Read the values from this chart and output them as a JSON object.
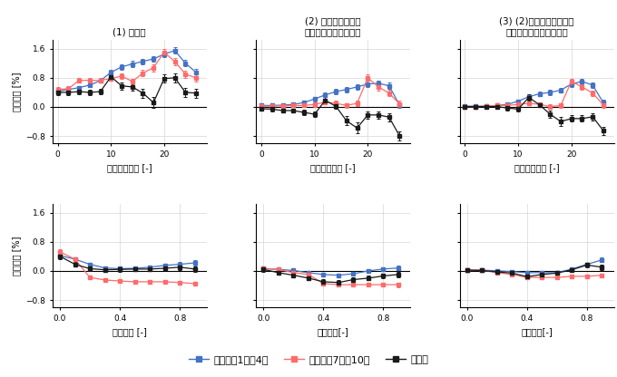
{
  "titles": [
    "(1) 補正前",
    "(2) 巻雲シグナルと\n大気の量を用いて補正",
    "(3) (2)に加えて上下濃度\n比の推定値も用いて補正"
  ],
  "xlabel_top": "巻雲シグナル [-]",
  "xlabel_bottom_1": "雲被覆率 [-]",
  "xlabel_bottom_23": "雲被覆率[-]",
  "ylabel": "推定誤差 [%]",
  "legend_labels": [
    "北半球の1月～4月",
    "北半球の7月～10月",
    "南半球"
  ],
  "blue_color": "#4472C4",
  "red_color": "#FF6B6B",
  "black_color": "#1a1a1a",
  "cirrus_x": [
    0,
    2,
    4,
    6,
    8,
    10,
    12,
    14,
    16,
    18,
    20,
    22,
    24,
    26
  ],
  "top_blue_1": [
    0.43,
    0.48,
    0.53,
    0.6,
    0.72,
    0.95,
    1.1,
    1.18,
    1.25,
    1.32,
    1.45,
    1.55,
    1.2,
    0.95
  ],
  "top_red_1": [
    0.48,
    0.5,
    0.73,
    0.73,
    0.73,
    0.78,
    0.85,
    0.7,
    0.93,
    1.08,
    1.5,
    1.25,
    0.9,
    0.8
  ],
  "top_black_1": [
    0.4,
    0.4,
    0.42,
    0.4,
    0.42,
    0.83,
    0.58,
    0.55,
    0.38,
    0.12,
    0.78,
    0.8,
    0.4,
    0.38
  ],
  "top_blue_1_eb": [
    0.06,
    0.05,
    0.05,
    0.06,
    0.06,
    0.07,
    0.07,
    0.08,
    0.08,
    0.08,
    0.09,
    0.09,
    0.09,
    0.1
  ],
  "top_red_1_eb": [
    0.07,
    0.06,
    0.06,
    0.06,
    0.06,
    0.07,
    0.08,
    0.08,
    0.09,
    0.1,
    0.1,
    0.1,
    0.1,
    0.11
  ],
  "top_black_1_eb": [
    0.08,
    0.07,
    0.07,
    0.07,
    0.07,
    0.1,
    0.1,
    0.1,
    0.12,
    0.15,
    0.12,
    0.12,
    0.13,
    0.13
  ],
  "top_blue_2": [
    0.04,
    0.04,
    0.05,
    0.07,
    0.12,
    0.22,
    0.33,
    0.42,
    0.48,
    0.55,
    0.63,
    0.65,
    0.58,
    0.05
  ],
  "top_red_2": [
    0.02,
    0.02,
    0.03,
    0.04,
    0.04,
    0.07,
    0.13,
    0.1,
    0.04,
    0.1,
    0.8,
    0.55,
    0.38,
    0.08
  ],
  "top_black_2": [
    -0.05,
    -0.06,
    -0.1,
    -0.1,
    -0.15,
    -0.2,
    0.18,
    0.02,
    -0.38,
    -0.58,
    -0.22,
    -0.22,
    -0.28,
    -0.8
  ],
  "top_blue_2_eb": [
    0.05,
    0.05,
    0.05,
    0.05,
    0.06,
    0.06,
    0.06,
    0.07,
    0.07,
    0.07,
    0.08,
    0.08,
    0.08,
    0.08
  ],
  "top_red_2_eb": [
    0.05,
    0.05,
    0.05,
    0.05,
    0.05,
    0.06,
    0.06,
    0.07,
    0.07,
    0.08,
    0.09,
    0.09,
    0.09,
    0.09
  ],
  "top_black_2_eb": [
    0.06,
    0.06,
    0.06,
    0.06,
    0.07,
    0.07,
    0.1,
    0.08,
    0.12,
    0.15,
    0.1,
    0.1,
    0.11,
    0.12
  ],
  "top_blue_3": [
    0.02,
    0.02,
    0.02,
    0.04,
    0.07,
    0.16,
    0.28,
    0.36,
    0.4,
    0.46,
    0.63,
    0.7,
    0.6,
    0.12
  ],
  "top_red_3": [
    0.01,
    0.01,
    0.02,
    0.04,
    0.04,
    0.07,
    0.1,
    0.07,
    0.01,
    0.04,
    0.7,
    0.55,
    0.38,
    0.06
  ],
  "top_black_3": [
    0.01,
    0.01,
    0.01,
    0.01,
    -0.03,
    -0.06,
    0.26,
    0.06,
    -0.2,
    -0.4,
    -0.32,
    -0.32,
    -0.27,
    -0.65
  ],
  "top_blue_3_eb": [
    0.04,
    0.04,
    0.04,
    0.05,
    0.05,
    0.05,
    0.06,
    0.06,
    0.07,
    0.07,
    0.08,
    0.08,
    0.08,
    0.08
  ],
  "top_red_3_eb": [
    0.04,
    0.04,
    0.04,
    0.05,
    0.05,
    0.05,
    0.06,
    0.06,
    0.06,
    0.07,
    0.08,
    0.08,
    0.08,
    0.09
  ],
  "top_black_3_eb": [
    0.05,
    0.05,
    0.05,
    0.05,
    0.06,
    0.06,
    0.09,
    0.07,
    0.1,
    0.12,
    0.09,
    0.09,
    0.1,
    0.11
  ],
  "cloud_x": [
    0.0,
    0.1,
    0.2,
    0.3,
    0.4,
    0.5,
    0.6,
    0.7,
    0.8,
    0.9
  ],
  "bot_blue_1": [
    0.42,
    0.32,
    0.18,
    0.08,
    0.06,
    0.07,
    0.1,
    0.15,
    0.18,
    0.22
  ],
  "bot_red_1": [
    0.52,
    0.32,
    -0.18,
    -0.25,
    -0.28,
    -0.3,
    -0.3,
    -0.3,
    -0.32,
    -0.35
  ],
  "bot_black_1": [
    0.4,
    0.18,
    0.06,
    0.03,
    0.04,
    0.05,
    0.05,
    0.07,
    0.1,
    0.05
  ],
  "bot_blue_1_eb": [
    0.06,
    0.06,
    0.05,
    0.05,
    0.05,
    0.05,
    0.05,
    0.05,
    0.06,
    0.07
  ],
  "bot_red_1_eb": [
    0.07,
    0.06,
    0.05,
    0.05,
    0.05,
    0.05,
    0.05,
    0.05,
    0.05,
    0.06
  ],
  "bot_black_1_eb": [
    0.07,
    0.06,
    0.06,
    0.06,
    0.06,
    0.06,
    0.06,
    0.06,
    0.07,
    0.08
  ],
  "bot_blue_2": [
    0.06,
    0.04,
    0.01,
    -0.05,
    -0.1,
    -0.12,
    -0.08,
    0.0,
    0.05,
    0.08
  ],
  "bot_red_2": [
    0.07,
    0.04,
    -0.05,
    -0.1,
    -0.35,
    -0.38,
    -0.38,
    -0.38,
    -0.38,
    -0.38
  ],
  "bot_black_2": [
    0.04,
    -0.05,
    -0.12,
    -0.2,
    -0.3,
    -0.32,
    -0.24,
    -0.2,
    -0.14,
    -0.1
  ],
  "bot_blue_2_eb": [
    0.05,
    0.05,
    0.04,
    0.04,
    0.04,
    0.04,
    0.04,
    0.04,
    0.05,
    0.06
  ],
  "bot_red_2_eb": [
    0.05,
    0.05,
    0.04,
    0.04,
    0.05,
    0.05,
    0.05,
    0.05,
    0.05,
    0.06
  ],
  "bot_black_2_eb": [
    0.06,
    0.05,
    0.05,
    0.06,
    0.07,
    0.07,
    0.06,
    0.06,
    0.06,
    0.07
  ],
  "bot_blue_3": [
    0.02,
    0.02,
    0.0,
    -0.02,
    -0.05,
    -0.05,
    -0.05,
    0.05,
    0.18,
    0.3
  ],
  "bot_red_3": [
    0.02,
    0.02,
    -0.05,
    -0.1,
    -0.18,
    -0.18,
    -0.18,
    -0.15,
    -0.15,
    -0.12
  ],
  "bot_black_3": [
    0.02,
    0.01,
    -0.03,
    -0.06,
    -0.16,
    -0.1,
    -0.06,
    0.03,
    0.16,
    0.1
  ],
  "bot_blue_3_eb": [
    0.04,
    0.04,
    0.04,
    0.04,
    0.04,
    0.04,
    0.04,
    0.04,
    0.05,
    0.06
  ],
  "bot_red_3_eb": [
    0.04,
    0.04,
    0.04,
    0.04,
    0.04,
    0.04,
    0.04,
    0.04,
    0.04,
    0.05
  ],
  "bot_black_3_eb": [
    0.05,
    0.05,
    0.05,
    0.05,
    0.06,
    0.06,
    0.05,
    0.05,
    0.06,
    0.07
  ],
  "yticks": [
    -0.8,
    0.0,
    0.8,
    1.6
  ],
  "ylim": [
    -1.0,
    1.85
  ],
  "cirrus_xlim": [
    -1,
    28
  ],
  "cloud_xlim": [
    -0.05,
    0.98
  ]
}
